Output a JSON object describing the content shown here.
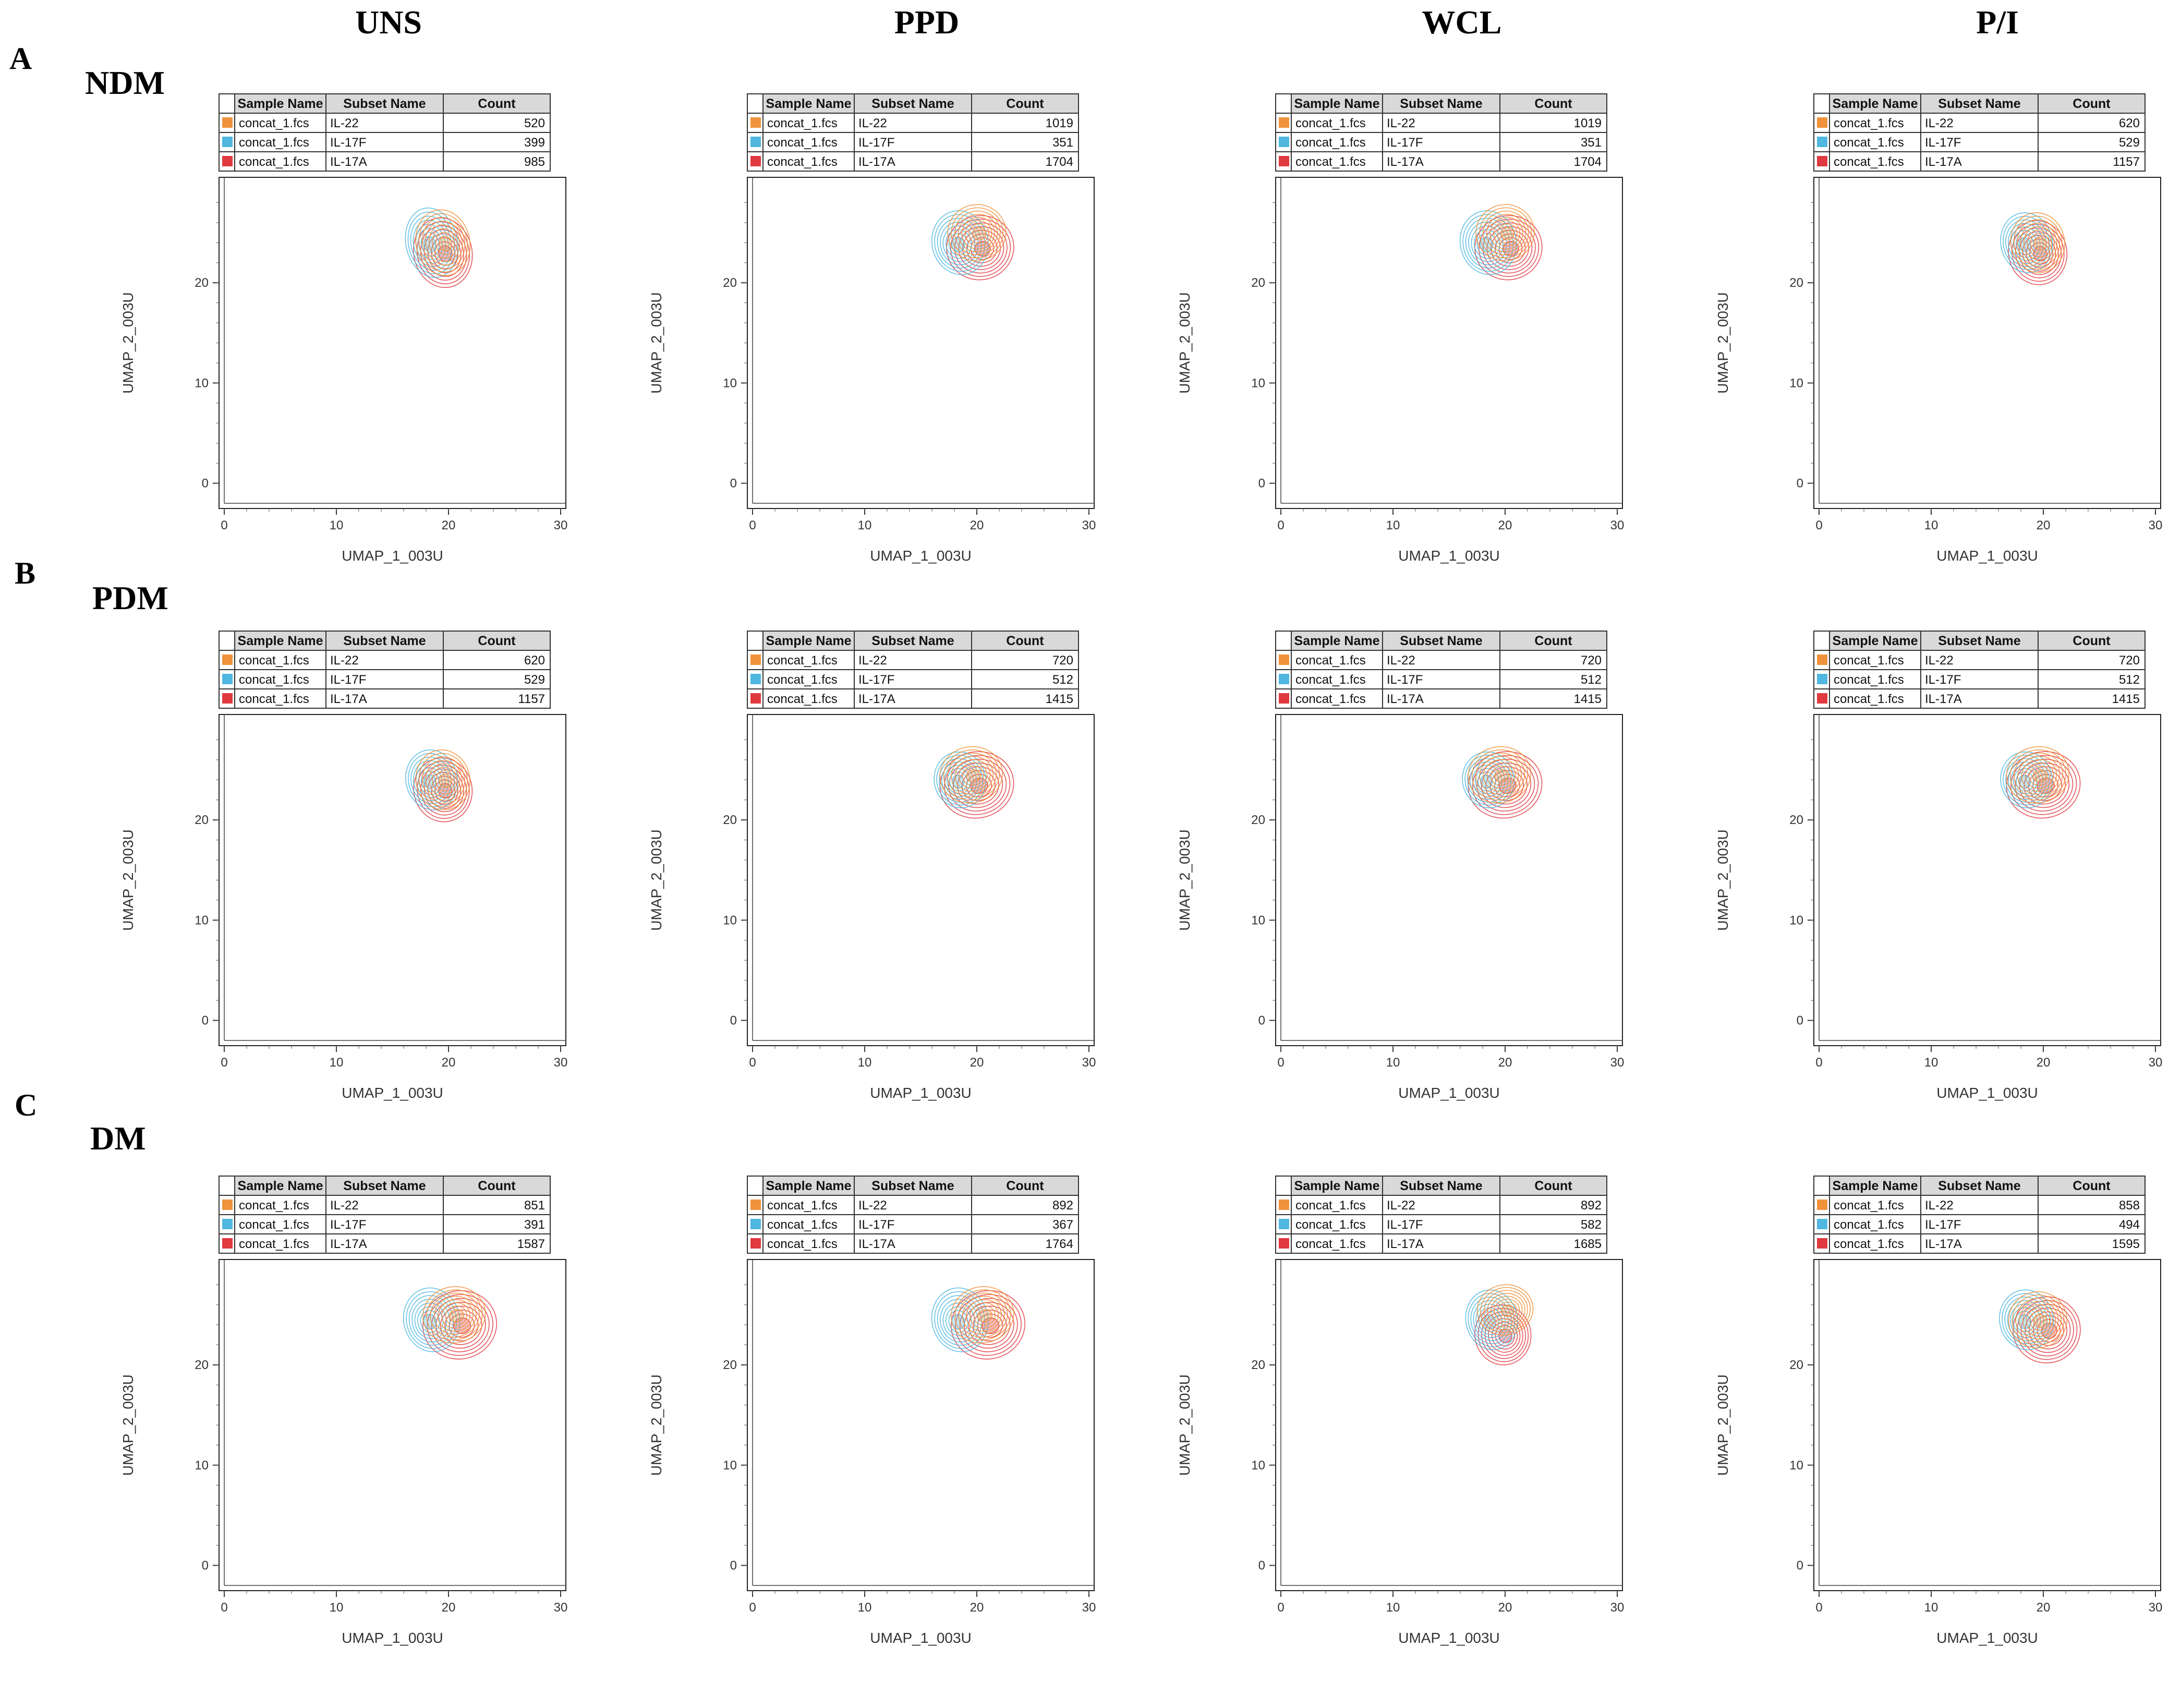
{
  "columns": [
    "UNS",
    "PPD",
    "WCL",
    "P/I"
  ],
  "rows": [
    {
      "letter": "A",
      "label": "NDM"
    },
    {
      "letter": "B",
      "label": "PDM"
    },
    {
      "letter": "C",
      "label": "DM"
    }
  ],
  "colors": {
    "IL-22": "#f0923b",
    "IL-17F": "#4fb7e0",
    "IL-17A": "#e0393f"
  },
  "chart_data": [
    {
      "type": "contour",
      "row": "NDM",
      "column": "UNS",
      "xlabel": "UMAP_1_003U",
      "ylabel": "UMAP_2_003U",
      "xlim": [
        0,
        30
      ],
      "ylim": [
        -2,
        30
      ],
      "xticks": [
        0,
        10,
        20,
        30
      ],
      "yticks": [
        0,
        10,
        20
      ],
      "legend": {
        "headers": [
          "Sample Name",
          "Subset Name",
          "Count"
        ],
        "rows": [
          [
            "concat_1.fcs",
            "IL-22",
            "520"
          ],
          [
            "concat_1.fcs",
            "IL-17F",
            "399"
          ],
          [
            "concat_1.fcs",
            "IL-17A",
            "985"
          ]
        ]
      },
      "series": [
        {
          "name": "IL-22",
          "center": [
            19.5,
            24
          ],
          "rx": 2.4,
          "ry": 3.3
        },
        {
          "name": "IL-17F",
          "center": [
            18.5,
            24
          ],
          "rx": 2.3,
          "ry": 3.5
        },
        {
          "name": "IL-17A",
          "center": [
            19.5,
            23
          ],
          "rx": 2.6,
          "ry": 3.5
        }
      ]
    },
    {
      "type": "contour",
      "row": "NDM",
      "column": "PPD",
      "xlabel": "UMAP_1_003U",
      "ylabel": "UMAP_2_003U",
      "xlim": [
        0,
        30
      ],
      "ylim": [
        -2,
        30
      ],
      "xticks": [
        0,
        10,
        20,
        30
      ],
      "yticks": [
        0,
        10,
        20
      ],
      "legend": {
        "headers": [
          "Sample Name",
          "Subset Name",
          "Count"
        ],
        "rows": [
          [
            "concat_1.fcs",
            "IL-22",
            "1019"
          ],
          [
            "concat_1.fcs",
            "IL-17F",
            "351"
          ],
          [
            "concat_1.fcs",
            "IL-17A",
            "1704"
          ]
        ]
      },
      "series": [
        {
          "name": "IL-22",
          "center": [
            20,
            25
          ],
          "rx": 2.6,
          "ry": 2.8
        },
        {
          "name": "IL-17F",
          "center": [
            18.5,
            24
          ],
          "rx": 2.5,
          "ry": 3.2
        },
        {
          "name": "IL-17A",
          "center": [
            20.3,
            23.5
          ],
          "rx": 3.0,
          "ry": 3.2
        }
      ]
    },
    {
      "type": "contour",
      "row": "NDM",
      "column": "WCL",
      "xlabel": "UMAP_1_003U",
      "ylabel": "UMAP_2_003U",
      "xlim": [
        0,
        30
      ],
      "ylim": [
        -2,
        30
      ],
      "xticks": [
        0,
        10,
        20,
        30
      ],
      "yticks": [
        0,
        10,
        20
      ],
      "legend": {
        "headers": [
          "Sample Name",
          "Subset Name",
          "Count"
        ],
        "rows": [
          [
            "concat_1.fcs",
            "IL-22",
            "1019"
          ],
          [
            "concat_1.fcs",
            "IL-17F",
            "351"
          ],
          [
            "concat_1.fcs",
            "IL-17A",
            "1704"
          ]
        ]
      },
      "series": [
        {
          "name": "IL-22",
          "center": [
            20,
            25
          ],
          "rx": 2.6,
          "ry": 2.8
        },
        {
          "name": "IL-17F",
          "center": [
            18.5,
            24
          ],
          "rx": 2.5,
          "ry": 3.2
        },
        {
          "name": "IL-17A",
          "center": [
            20.3,
            23.5
          ],
          "rx": 3.0,
          "ry": 3.2
        }
      ]
    },
    {
      "type": "contour",
      "row": "NDM",
      "column": "P/I",
      "xlabel": "UMAP_1_003U",
      "ylabel": "UMAP_2_003U",
      "xlim": [
        0,
        30
      ],
      "ylim": [
        -2,
        30
      ],
      "xticks": [
        0,
        10,
        20,
        30
      ],
      "yticks": [
        0,
        10,
        20
      ],
      "legend": {
        "headers": [
          "Sample Name",
          "Subset Name",
          "Count"
        ],
        "rows": [
          [
            "concat_1.fcs",
            "IL-22",
            "620"
          ],
          [
            "concat_1.fcs",
            "IL-17F",
            "529"
          ],
          [
            "concat_1.fcs",
            "IL-17A",
            "1157"
          ]
        ]
      },
      "series": [
        {
          "name": "IL-22",
          "center": [
            19.5,
            24
          ],
          "rx": 2.4,
          "ry": 3.0
        },
        {
          "name": "IL-17F",
          "center": [
            18.5,
            24
          ],
          "rx": 2.3,
          "ry": 3.0
        },
        {
          "name": "IL-17A",
          "center": [
            19.5,
            23
          ],
          "rx": 2.6,
          "ry": 3.2
        }
      ]
    },
    {
      "type": "contour",
      "row": "PDM",
      "column": "UNS",
      "xlabel": "UMAP_1_003U",
      "ylabel": "UMAP_2_003U",
      "xlim": [
        0,
        30
      ],
      "ylim": [
        -2,
        30
      ],
      "xticks": [
        0,
        10,
        20,
        30
      ],
      "yticks": [
        0,
        10,
        20
      ],
      "legend": {
        "headers": [
          "Sample Name",
          "Subset Name",
          "Count"
        ],
        "rows": [
          [
            "concat_1.fcs",
            "IL-22",
            "620"
          ],
          [
            "concat_1.fcs",
            "IL-17F",
            "529"
          ],
          [
            "concat_1.fcs",
            "IL-17A",
            "1157"
          ]
        ]
      },
      "series": [
        {
          "name": "IL-22",
          "center": [
            19.5,
            24
          ],
          "rx": 2.4,
          "ry": 3.0
        },
        {
          "name": "IL-17F",
          "center": [
            18.5,
            24
          ],
          "rx": 2.3,
          "ry": 3.0
        },
        {
          "name": "IL-17A",
          "center": [
            19.5,
            23
          ],
          "rx": 2.6,
          "ry": 3.2
        }
      ]
    },
    {
      "type": "contour",
      "row": "PDM",
      "column": "PPD",
      "xlabel": "UMAP_1_003U",
      "ylabel": "UMAP_2_003U",
      "xlim": [
        0,
        30
      ],
      "ylim": [
        -2,
        30
      ],
      "xticks": [
        0,
        10,
        20,
        30
      ],
      "yticks": [
        0,
        10,
        20
      ],
      "legend": {
        "headers": [
          "Sample Name",
          "Subset Name",
          "Count"
        ],
        "rows": [
          [
            "concat_1.fcs",
            "IL-22",
            "720"
          ],
          [
            "concat_1.fcs",
            "IL-17F",
            "512"
          ],
          [
            "concat_1.fcs",
            "IL-17A",
            "1415"
          ]
        ]
      },
      "series": [
        {
          "name": "IL-22",
          "center": [
            19.5,
            24.5
          ],
          "rx": 2.8,
          "ry": 2.8
        },
        {
          "name": "IL-17F",
          "center": [
            18.5,
            24
          ],
          "rx": 2.3,
          "ry": 2.8
        },
        {
          "name": "IL-17A",
          "center": [
            20,
            23.5
          ],
          "rx": 3.3,
          "ry": 3.3
        }
      ]
    },
    {
      "type": "contour",
      "row": "PDM",
      "column": "WCL",
      "xlabel": "UMAP_1_003U",
      "ylabel": "UMAP_2_003U",
      "xlim": [
        0,
        30
      ],
      "ylim": [
        -2,
        30
      ],
      "xticks": [
        0,
        10,
        20,
        30
      ],
      "yticks": [
        0,
        10,
        20
      ],
      "legend": {
        "headers": [
          "Sample Name",
          "Subset Name",
          "Count"
        ],
        "rows": [
          [
            "concat_1.fcs",
            "IL-22",
            "720"
          ],
          [
            "concat_1.fcs",
            "IL-17F",
            "512"
          ],
          [
            "concat_1.fcs",
            "IL-17A",
            "1415"
          ]
        ]
      },
      "series": [
        {
          "name": "IL-22",
          "center": [
            19.5,
            24.5
          ],
          "rx": 2.8,
          "ry": 2.8
        },
        {
          "name": "IL-17F",
          "center": [
            18.5,
            24
          ],
          "rx": 2.3,
          "ry": 2.8
        },
        {
          "name": "IL-17A",
          "center": [
            20,
            23.5
          ],
          "rx": 3.3,
          "ry": 3.3
        }
      ]
    },
    {
      "type": "contour",
      "row": "PDM",
      "column": "P/I",
      "xlabel": "UMAP_1_003U",
      "ylabel": "UMAP_2_003U",
      "xlim": [
        0,
        30
      ],
      "ylim": [
        -2,
        30
      ],
      "xticks": [
        0,
        10,
        20,
        30
      ],
      "yticks": [
        0,
        10,
        20
      ],
      "legend": {
        "headers": [
          "Sample Name",
          "Subset Name",
          "Count"
        ],
        "rows": [
          [
            "concat_1.fcs",
            "IL-22",
            "720"
          ],
          [
            "concat_1.fcs",
            "IL-17F",
            "512"
          ],
          [
            "concat_1.fcs",
            "IL-17A",
            "1415"
          ]
        ]
      },
      "series": [
        {
          "name": "IL-22",
          "center": [
            19.5,
            24.5
          ],
          "rx": 2.8,
          "ry": 2.8
        },
        {
          "name": "IL-17F",
          "center": [
            18.5,
            24
          ],
          "rx": 2.3,
          "ry": 2.8
        },
        {
          "name": "IL-17A",
          "center": [
            20,
            23.5
          ],
          "rx": 3.3,
          "ry": 3.3
        }
      ]
    },
    {
      "type": "contour",
      "row": "DM",
      "column": "UNS",
      "xlabel": "UMAP_1_003U",
      "ylabel": "UMAP_2_003U",
      "xlim": [
        0,
        30
      ],
      "ylim": [
        -2,
        30
      ],
      "xticks": [
        0,
        10,
        20,
        30
      ],
      "yticks": [
        0,
        10,
        20
      ],
      "legend": {
        "headers": [
          "Sample Name",
          "Subset Name",
          "Count"
        ],
        "rows": [
          [
            "concat_1.fcs",
            "IL-22",
            "851"
          ],
          [
            "concat_1.fcs",
            "IL-17F",
            "391"
          ],
          [
            "concat_1.fcs",
            "IL-17A",
            "1587"
          ]
        ]
      },
      "series": [
        {
          "name": "IL-22",
          "center": [
            20.5,
            25
          ],
          "rx": 2.8,
          "ry": 2.8
        },
        {
          "name": "IL-17F",
          "center": [
            18.5,
            24.5
          ],
          "rx": 2.5,
          "ry": 3.2
        },
        {
          "name": "IL-17A",
          "center": [
            21,
            24
          ],
          "rx": 3.3,
          "ry": 3.4
        }
      ]
    },
    {
      "type": "contour",
      "row": "DM",
      "column": "PPD",
      "xlabel": "UMAP_1_003U",
      "ylabel": "UMAP_2_003U",
      "xlim": [
        0,
        30
      ],
      "ylim": [
        -2,
        30
      ],
      "xticks": [
        0,
        10,
        20,
        30
      ],
      "yticks": [
        0,
        10,
        20
      ],
      "legend": {
        "headers": [
          "Sample Name",
          "Subset Name",
          "Count"
        ],
        "rows": [
          [
            "concat_1.fcs",
            "IL-22",
            "892"
          ],
          [
            "concat_1.fcs",
            "IL-17F",
            "367"
          ],
          [
            "concat_1.fcs",
            "IL-17A",
            "1764"
          ]
        ]
      },
      "series": [
        {
          "name": "IL-22",
          "center": [
            20.5,
            25
          ],
          "rx": 2.8,
          "ry": 2.8
        },
        {
          "name": "IL-17F",
          "center": [
            18.5,
            24.5
          ],
          "rx": 2.5,
          "ry": 3.2
        },
        {
          "name": "IL-17A",
          "center": [
            21,
            24
          ],
          "rx": 3.3,
          "ry": 3.4
        }
      ]
    },
    {
      "type": "contour",
      "row": "DM",
      "column": "WCL",
      "xlabel": "UMAP_1_003U",
      "ylabel": "UMAP_2_003U",
      "xlim": [
        0,
        30
      ],
      "ylim": [
        -2,
        30
      ],
      "xticks": [
        0,
        10,
        20,
        30
      ],
      "yticks": [
        0,
        10,
        20
      ],
      "legend": {
        "headers": [
          "Sample Name",
          "Subset Name",
          "Count"
        ],
        "rows": [
          [
            "concat_1.fcs",
            "IL-22",
            "892"
          ],
          [
            "concat_1.fcs",
            "IL-17F",
            "582"
          ],
          [
            "concat_1.fcs",
            "IL-17A",
            "1685"
          ]
        ]
      },
      "series": [
        {
          "name": "IL-22",
          "center": [
            20,
            25.5
          ],
          "rx": 2.5,
          "ry": 2.5
        },
        {
          "name": "IL-17F",
          "center": [
            18.8,
            24.5
          ],
          "rx": 2.3,
          "ry": 3.0
        },
        {
          "name": "IL-17A",
          "center": [
            19.8,
            23
          ],
          "rx": 2.5,
          "ry": 3.0
        }
      ]
    },
    {
      "type": "contour",
      "row": "DM",
      "column": "P/I",
      "xlabel": "UMAP_1_003U",
      "ylabel": "UMAP_2_003U",
      "xlim": [
        0,
        30
      ],
      "ylim": [
        -2,
        30
      ],
      "xticks": [
        0,
        10,
        20,
        30
      ],
      "yticks": [
        0,
        10,
        20
      ],
      "legend": {
        "headers": [
          "Sample Name",
          "Subset Name",
          "Count"
        ],
        "rows": [
          [
            "concat_1.fcs",
            "IL-22",
            "858"
          ],
          [
            "concat_1.fcs",
            "IL-17F",
            "494"
          ],
          [
            "concat_1.fcs",
            "IL-17A",
            "1595"
          ]
        ]
      },
      "series": [
        {
          "name": "IL-22",
          "center": [
            19.5,
            24.5
          ],
          "rx": 2.6,
          "ry": 2.8
        },
        {
          "name": "IL-17F",
          "center": [
            18.5,
            24.5
          ],
          "rx": 2.4,
          "ry": 3.0
        },
        {
          "name": "IL-17A",
          "center": [
            20.3,
            23.5
          ],
          "rx": 3.0,
          "ry": 3.3
        }
      ]
    }
  ]
}
